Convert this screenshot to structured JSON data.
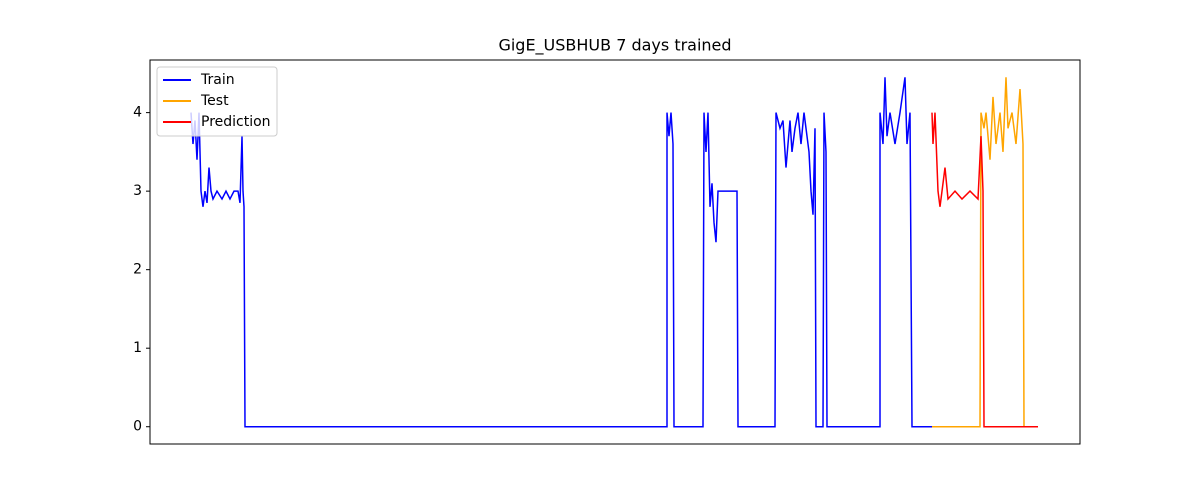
{
  "chart_data": {
    "type": "line",
    "title": "GigE_USBHUB 7 days trained",
    "xlim": [
      0,
      930
    ],
    "ylim": [
      -0.22,
      4.67
    ],
    "yticks": [
      0,
      1,
      2,
      3,
      4
    ],
    "legend": "upper left",
    "series": [
      {
        "name": "Train",
        "color": "#0000ff",
        "x": [
          41,
          43,
          45,
          47,
          49,
          51,
          53,
          55,
          57,
          59,
          61,
          63,
          67,
          72,
          76,
          80,
          84,
          88,
          90,
          92,
          93,
          94,
          95,
          517,
          517,
          519,
          521,
          523,
          524,
          553,
          554,
          556,
          558,
          560,
          562,
          564,
          566,
          568,
          587,
          588,
          625,
          626,
          630,
          633,
          636,
          638,
          640,
          642,
          645,
          648,
          651,
          654,
          657,
          659,
          661,
          663,
          665,
          666,
          673,
          674,
          676,
          677,
          730,
          730,
          733,
          735,
          737,
          740,
          745,
          750,
          755,
          757,
          760,
          762,
          782
        ],
        "values": [
          4.0,
          3.6,
          3.9,
          3.4,
          4.0,
          3.0,
          2.8,
          3.0,
          2.85,
          3.3,
          3.0,
          2.9,
          3.0,
          2.9,
          3.0,
          2.9,
          3.0,
          3.0,
          2.85,
          3.7,
          3.0,
          2.8,
          0,
          0,
          4.0,
          3.7,
          4.0,
          3.6,
          0,
          0,
          4.0,
          3.5,
          4.0,
          2.8,
          3.1,
          2.6,
          2.35,
          3.0,
          3.0,
          0,
          0,
          4.0,
          3.8,
          3.9,
          3.3,
          3.6,
          3.9,
          3.5,
          3.8,
          4.0,
          3.6,
          4.0,
          3.7,
          3.5,
          3.0,
          2.7,
          3.8,
          0,
          0,
          4.0,
          3.5,
          0,
          0,
          4.0,
          3.6,
          4.45,
          3.7,
          4.0,
          3.6,
          4.0,
          4.45,
          3.6,
          4.0,
          0,
          0
        ]
      },
      {
        "name": "Test",
        "color": "#ffa500",
        "x": [
          782,
          830,
          831,
          834,
          836,
          840,
          843,
          846,
          850,
          853,
          856,
          858,
          862,
          866,
          870,
          873,
          874,
          875
        ],
        "values": [
          0,
          0,
          4.0,
          3.8,
          4.0,
          3.4,
          4.2,
          3.6,
          4.0,
          3.5,
          4.45,
          3.8,
          4.0,
          3.6,
          4.3,
          3.6,
          0,
          0
        ]
      },
      {
        "name": "Prediction",
        "color": "#ff0000",
        "x": [
          782,
          783,
          785,
          788,
          790,
          792,
          795,
          798,
          805,
          812,
          820,
          828,
          831,
          833,
          834,
          888
        ],
        "values": [
          4.0,
          3.6,
          4.0,
          3.0,
          2.8,
          3.0,
          3.3,
          2.9,
          3.0,
          2.9,
          3.0,
          2.9,
          3.7,
          3.0,
          0,
          0
        ]
      }
    ]
  }
}
